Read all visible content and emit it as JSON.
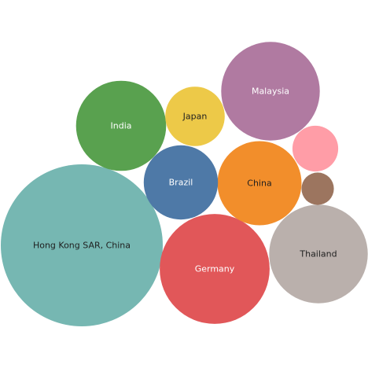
{
  "chart_data": {
    "type": "bubble",
    "title": "",
    "series": [
      {
        "name": "Hong Kong SAR, China",
        "value": 100,
        "label": "Hong Kong SAR, China",
        "color": "#76b7b2",
        "label_color": "#1f1f1f"
      },
      {
        "name": "Germany",
        "value": 46,
        "label": "Germany",
        "color": "#e15759",
        "label_color": "#ffffff"
      },
      {
        "name": "Thailand",
        "value": 37,
        "label": "Thailand",
        "color": "#bab0ac",
        "label_color": "#1f1f1f"
      },
      {
        "name": "Malaysia",
        "value": 37,
        "label": "Malaysia",
        "color": "#b07aa1",
        "label_color": "#ffffff"
      },
      {
        "name": "India",
        "value": 31,
        "label": "India",
        "color": "#59a14f",
        "label_color": "#ffffff"
      },
      {
        "name": "China",
        "value": 27,
        "label": "China",
        "color": "#f28e2b",
        "label_color": "#1f1f1f"
      },
      {
        "name": "Brazil",
        "value": 21,
        "label": "Brazil",
        "color": "#4e79a7",
        "label_color": "#ffffff"
      },
      {
        "name": "Japan",
        "value": 13.5,
        "label": "Japan",
        "color": "#edc948",
        "label_color": "#1f1f1f"
      },
      {
        "name": "",
        "value": 8,
        "label": "",
        "color": "#ff9da7",
        "label_color": "#1f1f1f"
      },
      {
        "name": "",
        "value": 4,
        "label": "",
        "color": "#9c755f",
        "label_color": "#ffffff"
      }
    ]
  }
}
